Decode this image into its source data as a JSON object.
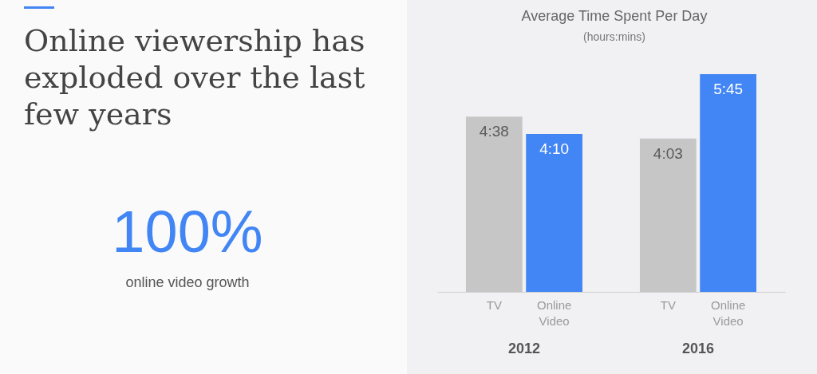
{
  "chart_data": {
    "type": "bar",
    "title": "Average Time Spent Per Day",
    "subtitle": "(hours:mins)",
    "categories": [
      "2012",
      "2016"
    ],
    "series": [
      {
        "name": "TV",
        "color": "#c6c6c6",
        "values": [
          4.63,
          4.05
        ],
        "value_labels": [
          "4:38",
          "4:03"
        ]
      },
      {
        "name": "Online Video",
        "color": "#4285f4",
        "values": [
          4.17,
          5.75
        ],
        "value_labels": [
          "4:10",
          "5:45"
        ]
      }
    ],
    "annotations": [
      "Online viewership has exploded over the last few years",
      "100%",
      "online video growth"
    ],
    "legend": false,
    "grid": false
  }
}
